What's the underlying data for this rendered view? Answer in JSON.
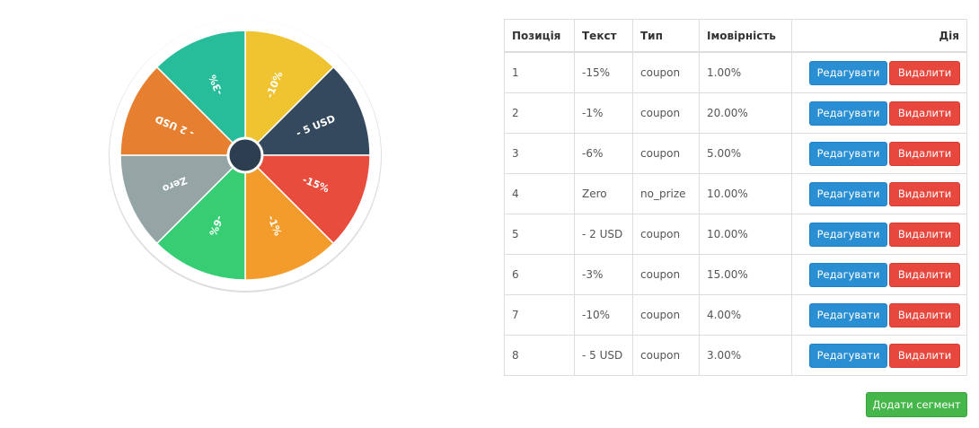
{
  "wheel": {
    "segments": [
      {
        "label": "-10%",
        "color": "#f0c330"
      },
      {
        "label": "- 5 USD",
        "color": "#34495e"
      },
      {
        "label": "-15%",
        "color": "#e74c3c"
      },
      {
        "label": "-1%",
        "color": "#f39c2b"
      },
      {
        "label": "-6%",
        "color": "#36cd73"
      },
      {
        "label": "Zero",
        "color": "#95a5a6"
      },
      {
        "label": "- 2 USD",
        "color": "#e67f2f"
      },
      {
        "label": "-3%",
        "color": "#27bd9b"
      }
    ],
    "hub_color": "#2c3e50",
    "rim_color": "#ffffff"
  },
  "table": {
    "headers": {
      "position": "Позиція",
      "text": "Текст",
      "type": "Тип",
      "probability": "Імовірність",
      "action": "Дія"
    },
    "rows": [
      {
        "position": "1",
        "text": "-15%",
        "type": "coupon",
        "probability": "1.00%"
      },
      {
        "position": "2",
        "text": "-1%",
        "type": "coupon",
        "probability": "20.00%"
      },
      {
        "position": "3",
        "text": "-6%",
        "type": "coupon",
        "probability": "5.00%"
      },
      {
        "position": "4",
        "text": "Zero",
        "type": "no_prize",
        "probability": "10.00%"
      },
      {
        "position": "5",
        "text": "- 2 USD",
        "type": "coupon",
        "probability": "10.00%"
      },
      {
        "position": "6",
        "text": "-3%",
        "type": "coupon",
        "probability": "15.00%"
      },
      {
        "position": "7",
        "text": "-10%",
        "type": "coupon",
        "probability": "4.00%"
      },
      {
        "position": "8",
        "text": "- 5 USD",
        "type": "coupon",
        "probability": "3.00%"
      }
    ],
    "edit_label": "Редагувати",
    "delete_label": "Видалити"
  },
  "add_segment_label": "Додати сегмент",
  "colors": {
    "edit": "#2a8ed2",
    "delete": "#e7473d",
    "add": "#45b649"
  }
}
